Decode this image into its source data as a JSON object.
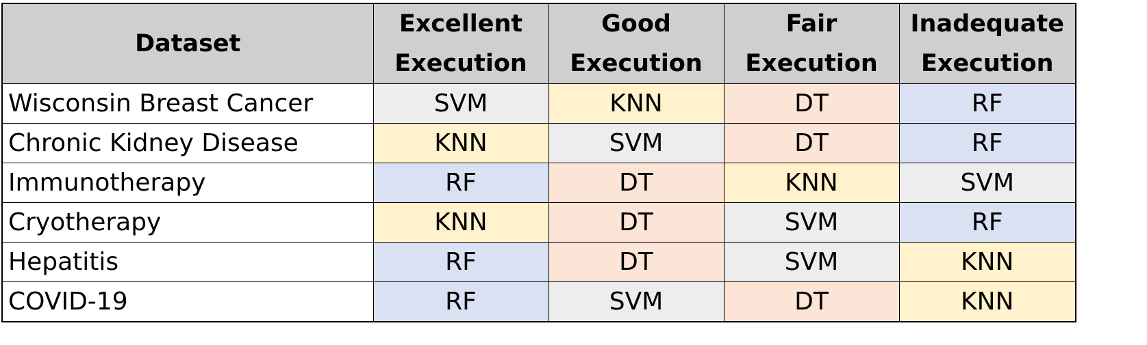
{
  "colors": {
    "header_bg": "#d0cece",
    "SVM": "#ededed",
    "KNN": "#fff2cc",
    "DT": "#fce4d6",
    "RF": "#d9e1f2"
  },
  "table": {
    "headers": [
      {
        "lines": [
          "Dataset"
        ]
      },
      {
        "lines": [
          "Excellent",
          "Execution"
        ]
      },
      {
        "lines": [
          "Good",
          "Execution"
        ]
      },
      {
        "lines": [
          "Fair",
          "Execution"
        ]
      },
      {
        "lines": [
          "Inadequate",
          "Execution"
        ]
      }
    ],
    "rows": [
      {
        "dataset": "Wisconsin Breast Cancer",
        "cells": [
          "SVM",
          "KNN",
          "DT",
          "RF"
        ]
      },
      {
        "dataset": "Chronic Kidney Disease",
        "cells": [
          "KNN",
          "SVM",
          "DT",
          "RF"
        ]
      },
      {
        "dataset": "Immunotherapy",
        "cells": [
          "RF",
          "DT",
          "KNN",
          "SVM"
        ]
      },
      {
        "dataset": "Cryotherapy",
        "cells": [
          "KNN",
          "DT",
          "SVM",
          "RF"
        ]
      },
      {
        "dataset": "Hepatitis",
        "cells": [
          "RF",
          "DT",
          "SVM",
          "KNN"
        ]
      },
      {
        "dataset": "COVID-19",
        "cells": [
          "RF",
          "SVM",
          "DT",
          "KNN"
        ]
      }
    ]
  }
}
